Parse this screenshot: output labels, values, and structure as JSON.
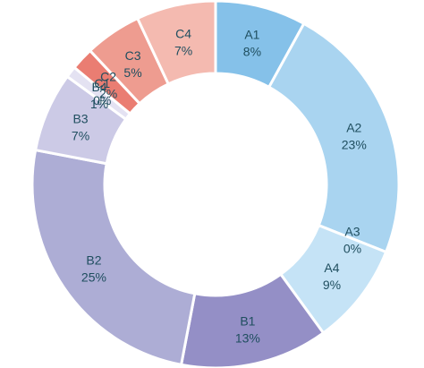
{
  "chart_data": {
    "type": "pie",
    "subtype": "donut",
    "slices": [
      {
        "label": "A1",
        "value": 8,
        "text": "8%",
        "color": "#85c1e9"
      },
      {
        "label": "A2",
        "value": 23,
        "text": "23%",
        "color": "#a9d4f0"
      },
      {
        "label": "A3",
        "value": 0,
        "text": "0%",
        "color": "#a9d4f0"
      },
      {
        "label": "A4",
        "value": 9,
        "text": "9%",
        "color": "#c5e3f6"
      },
      {
        "label": "B1",
        "value": 13,
        "text": "13%",
        "color": "#948fc6"
      },
      {
        "label": "B2",
        "value": 25,
        "text": "25%",
        "color": "#adadd5"
      },
      {
        "label": "B3",
        "value": 7,
        "text": "7%",
        "color": "#cccae6"
      },
      {
        "label": "B4",
        "value": 1,
        "text": "1%",
        "color": "#e4e2f2"
      },
      {
        "label": "C1",
        "value": 0,
        "text": "0%",
        "color": "#e8564f"
      },
      {
        "label": "C2",
        "value": 2,
        "text": "2%",
        "color": "#ea7d72"
      },
      {
        "label": "C3",
        "value": 5,
        "text": "5%",
        "color": "#ee9c90"
      },
      {
        "label": "C4",
        "value": 7,
        "text": "7%",
        "color": "#f4bab0"
      }
    ],
    "start_angle_deg": 0,
    "direction": "clockwise",
    "legend": "none",
    "title": ""
  }
}
